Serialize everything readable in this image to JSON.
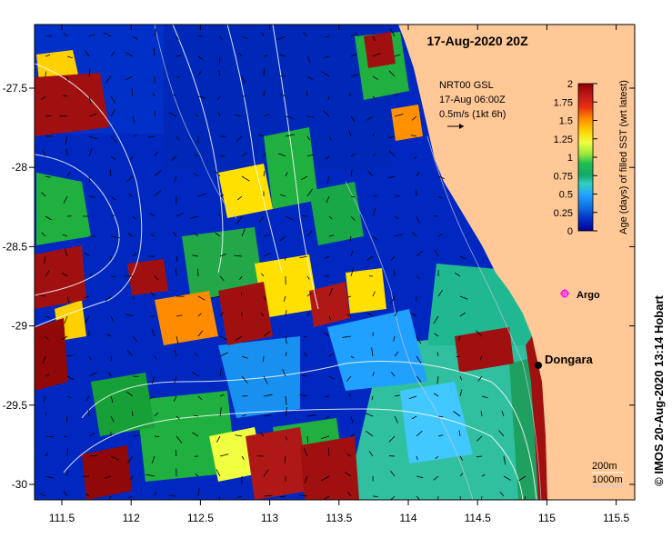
{
  "map": {
    "title": "17-Aug-2020 20Z",
    "x_ticks": [
      "111.5",
      "112",
      "112.5",
      "113",
      "113.5",
      "114",
      "114.5",
      "115",
      "115.5"
    ],
    "y_ticks": [
      "-27.5",
      "-28",
      "-28.5",
      "-29",
      "-29.5",
      "-30"
    ],
    "current_legend": {
      "line1": "NRT00 GSL",
      "line2": "17-Aug 06:00Z",
      "line3": "0.5m/s (1kt 6h)"
    },
    "colorbar": {
      "title": "Age (days) of filled SST (wrt latest)",
      "ticks": [
        "2",
        "1.75",
        "1.5",
        "1.25",
        "1",
        "0.75",
        "0.5",
        "0.25",
        "0"
      ],
      "colors": [
        "#8b0000",
        "#c01818",
        "#e83010",
        "#ff8c00",
        "#ffd000",
        "#f0ff40",
        "#9ae63c",
        "#20c050",
        "#10a868",
        "#30d0c0",
        "#20a0ff",
        "#1070e0",
        "#0030c8",
        "#000090"
      ]
    },
    "argo_label": "Argo",
    "town_label": "Dongara",
    "depth_label_1": "200m",
    "depth_label_2": "1000m",
    "credit": "© IMOS 20-Aug-2020 13:14 Hobart",
    "palette": {
      "land": "#ffc896",
      "deep_blue": "#0028c0",
      "mid_blue": "#1060e0",
      "light_blue": "#20a0ff",
      "teal": "#30c0a0",
      "green": "#20b040",
      "yellow": "#ffe000",
      "orange": "#ff8c00",
      "dark_red": "#a01010",
      "argo": "#ff00ff"
    }
  }
}
